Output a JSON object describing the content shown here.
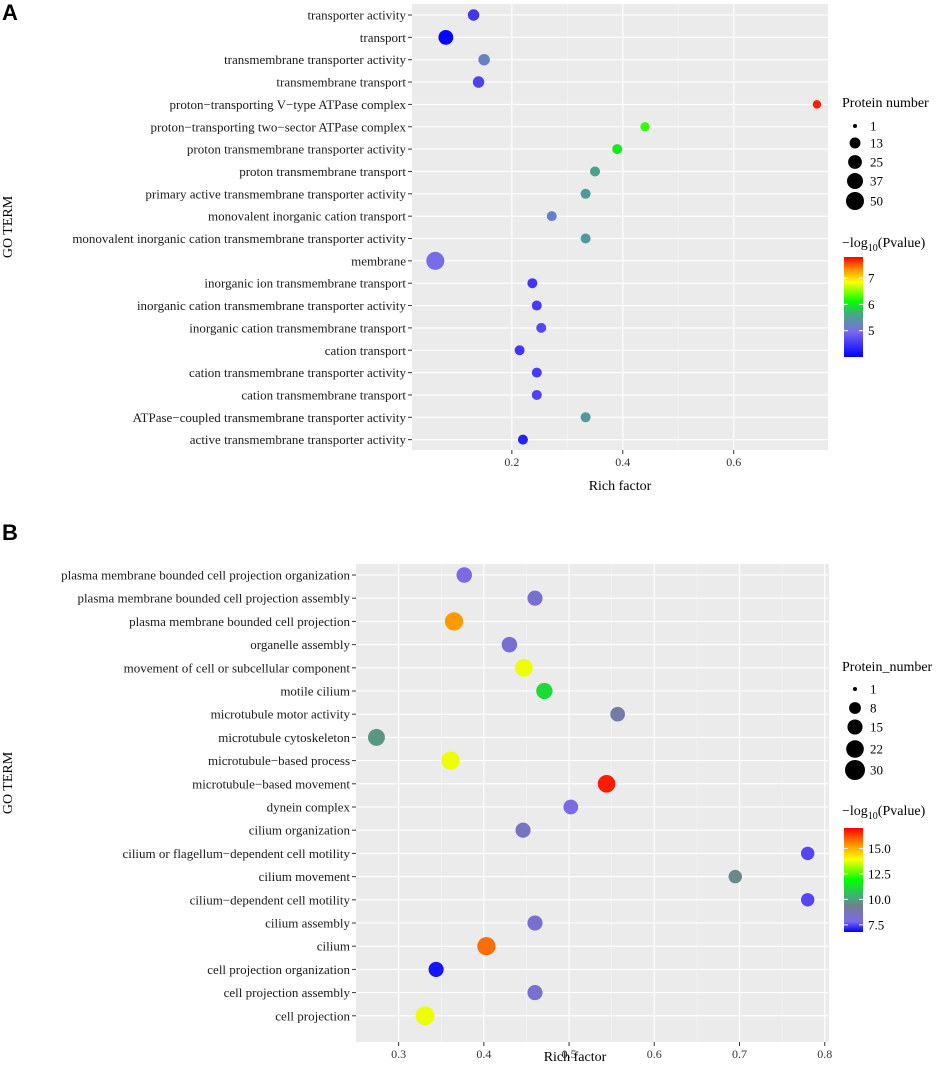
{
  "chart_data": [
    {
      "panel_label": "A",
      "type": "scatter",
      "xlabel": "Rich factor",
      "ylabel": "GO TERM",
      "x_ticks": [
        0.2,
        0.4,
        0.6
      ],
      "x_tick_labels": [
        "0.2",
        "0.4",
        "0.6"
      ],
      "xlim": [
        0.02,
        0.77
      ],
      "size_legend": {
        "title": "Protein number",
        "values": [
          1,
          13,
          25,
          37,
          50
        ],
        "labels": [
          "1",
          "13",
          "25",
          "37",
          "50"
        ]
      },
      "color_legend": {
        "title_prefix": "−log",
        "title_sub": "10",
        "title_suffix": "(Pvalue)",
        "min": 4.0,
        "max": 7.8,
        "ticks": [
          5,
          6,
          7
        ],
        "tick_labels": [
          "5",
          "6",
          "7"
        ]
      },
      "points": [
        {
          "term": "transporter activity",
          "x": 0.131,
          "size": 15,
          "color": 4.5
        },
        {
          "term": "transport",
          "x": 0.081,
          "size": 30,
          "color": 4.05
        },
        {
          "term": "transmembrane transporter activity",
          "x": 0.15,
          "size": 15,
          "color": 5.2
        },
        {
          "term": "transmembrane transport",
          "x": 0.14,
          "size": 15,
          "color": 4.6
        },
        {
          "term": "proton−transporting V−type ATPase complex",
          "x": 0.75,
          "size": 6,
          "color": 7.7
        },
        {
          "term": "proton−transporting two−sector ATPase complex",
          "x": 0.44,
          "size": 8,
          "color": 6.25
        },
        {
          "term": "proton transmembrane transporter activity",
          "x": 0.39,
          "size": 10,
          "color": 6.0
        },
        {
          "term": "proton transmembrane transport",
          "x": 0.35,
          "size": 10,
          "color": 5.55
        },
        {
          "term": "primary active transmembrane transporter activity",
          "x": 0.333,
          "size": 10,
          "color": 5.45
        },
        {
          "term": "monovalent inorganic cation transport",
          "x": 0.272,
          "size": 10,
          "color": 5.15
        },
        {
          "term": "monovalent inorganic cation transmembrane transporter activity",
          "x": 0.333,
          "size": 10,
          "color": 5.45
        },
        {
          "term": "membrane",
          "x": 0.062,
          "size": 50,
          "color": 5.0
        },
        {
          "term": "inorganic ion transmembrane transport",
          "x": 0.237,
          "size": 10,
          "color": 4.5
        },
        {
          "term": "inorganic cation transmembrane transporter activity",
          "x": 0.245,
          "size": 10,
          "color": 4.55
        },
        {
          "term": "inorganic cation transmembrane transport",
          "x": 0.253,
          "size": 10,
          "color": 4.65
        },
        {
          "term": "cation transport",
          "x": 0.214,
          "size": 10,
          "color": 4.5
        },
        {
          "term": "cation transmembrane transporter activity",
          "x": 0.245,
          "size": 10,
          "color": 4.55
        },
        {
          "term": "cation transmembrane transport",
          "x": 0.245,
          "size": 10,
          "color": 4.6
        },
        {
          "term": "ATPase−coupled transmembrane transporter activity",
          "x": 0.333,
          "size": 10,
          "color": 5.45
        },
        {
          "term": "active transmembrane transporter activity",
          "x": 0.22,
          "size": 10,
          "color": 4.3
        }
      ]
    },
    {
      "panel_label": "B",
      "type": "scatter",
      "xlabel": "Rich factor",
      "ylabel": "GO TERM",
      "x_ticks": [
        0.3,
        0.4,
        0.5,
        0.6,
        0.7,
        0.8
      ],
      "x_tick_labels": [
        "0.3",
        "0.4",
        "0.5",
        "0.6",
        "0.7",
        "0.8"
      ],
      "xlim": [
        0.25,
        0.805
      ],
      "size_legend": {
        "title": "Protein_number",
        "values": [
          1,
          8,
          15,
          22,
          30
        ],
        "labels": [
          "1",
          "8",
          "15",
          "22",
          "30"
        ]
      },
      "color_legend": {
        "title_prefix": "−log",
        "title_sub": "10",
        "title_suffix": "(Pvalue)",
        "min": 6.8,
        "max": 17.0,
        "ticks": [
          7.5,
          10.0,
          12.5,
          15.0
        ],
        "tick_labels": [
          "7.5",
          "10.0",
          "12.5",
          "15.0"
        ]
      },
      "points": [
        {
          "term": "plasma membrane bounded cell projection organization",
          "x": 0.377,
          "size": 16,
          "color": 8.0
        },
        {
          "term": "plasma membrane bounded cell projection assembly",
          "x": 0.46,
          "size": 15,
          "color": 8.3
        },
        {
          "term": "plasma membrane bounded cell projection",
          "x": 0.365,
          "size": 24,
          "color": 15.3
        },
        {
          "term": "organelle assembly",
          "x": 0.43,
          "size": 16,
          "color": 8.3
        },
        {
          "term": "movement of cell or subcellular component",
          "x": 0.447,
          "size": 22,
          "color": 13.8
        },
        {
          "term": "motile cilium",
          "x": 0.471,
          "size": 18,
          "color": 11.2
        },
        {
          "term": "microtubule motor activity",
          "x": 0.557,
          "size": 14,
          "color": 9.0
        },
        {
          "term": "microtubule cytoskeleton",
          "x": 0.274,
          "size": 20,
          "color": 9.8
        },
        {
          "term": "microtubule−based process",
          "x": 0.361,
          "size": 24,
          "color": 13.8
        },
        {
          "term": "microtubule−based movement",
          "x": 0.544,
          "size": 22,
          "color": 16.7
        },
        {
          "term": "dynein complex",
          "x": 0.502,
          "size": 14,
          "color": 8.0
        },
        {
          "term": "cilium organization",
          "x": 0.446,
          "size": 15,
          "color": 8.6
        },
        {
          "term": "cilium or flagellum−dependent cell motility",
          "x": 0.78,
          "size": 11,
          "color": 7.5
        },
        {
          "term": "cilium movement",
          "x": 0.695,
          "size": 11,
          "color": 9.5
        },
        {
          "term": "cilium−dependent cell motility",
          "x": 0.78,
          "size": 11,
          "color": 7.5
        },
        {
          "term": "cilium assembly",
          "x": 0.46,
          "size": 15,
          "color": 8.3
        },
        {
          "term": "cilium",
          "x": 0.403,
          "size": 24,
          "color": 15.8
        },
        {
          "term": "cell projection organization",
          "x": 0.344,
          "size": 15,
          "color": 7.0
        },
        {
          "term": "cell projection assembly",
          "x": 0.46,
          "size": 15,
          "color": 8.3
        },
        {
          "term": "cell projection",
          "x": 0.331,
          "size": 26,
          "color": 13.8
        }
      ]
    }
  ]
}
